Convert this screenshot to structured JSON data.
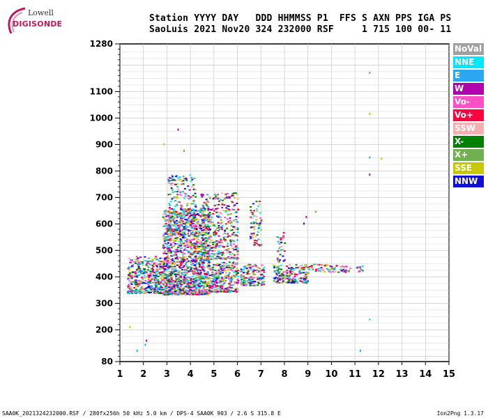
{
  "logo": {
    "line1": "Lowell",
    "line2": "DIGISONDE"
  },
  "header": {
    "line1": "Station YYYY DAY   DDD HHMMSS P1  FFS S AXN PPS IGA PS",
    "line2": "SaoLuis 2021 Nov20 324 232000 RSF     1 715 100 00- 11"
  },
  "footer": {
    "left": "SAA0K_2021324232000.RSF / 280fx256h 50 kHz 5.0 km / DPS-4 SAA0K 903 / 2.6 S 315.8 E",
    "right": "Ion2Png 1.3.17"
  },
  "legend": [
    {
      "label": "NoVal",
      "color": "#a0a0a0"
    },
    {
      "label": "NNE",
      "color": "#00e8ff"
    },
    {
      "label": "E",
      "color": "#2aa7f0"
    },
    {
      "label": "W",
      "color": "#b000b0"
    },
    {
      "label": "Vo-",
      "color": "#ff50c8"
    },
    {
      "label": "Vo+",
      "color": "#ff0040"
    },
    {
      "label": "SSW",
      "color": "#f4b0b0"
    },
    {
      "label": "X-",
      "color": "#008000"
    },
    {
      "label": "X+",
      "color": "#70b050"
    },
    {
      "label": "SSE",
      "color": "#c8c800"
    },
    {
      "label": "NNW",
      "color": "#1010d0"
    }
  ],
  "chart_data": {
    "type": "scatter",
    "title": "",
    "xlabel": "",
    "ylabel": "",
    "xlim": [
      1,
      15
    ],
    "ylim": [
      80,
      1280
    ],
    "x_ticks": [
      1,
      2,
      3,
      4,
      5,
      6,
      7,
      8,
      9,
      10,
      11,
      12,
      13,
      14,
      15
    ],
    "y_ticks": [
      80,
      200,
      300,
      400,
      500,
      600,
      700,
      800,
      900,
      1000,
      1100,
      1280
    ],
    "grid": true,
    "legend_position": "right",
    "clusters": [
      {
        "x": [
          1.3,
          2.8
        ],
        "y": [
          340,
          480
        ],
        "weight": 0.9
      },
      {
        "x": [
          2.8,
          4.8
        ],
        "y": [
          335,
          660
        ],
        "weight": 1.0
      },
      {
        "x": [
          3.0,
          4.2
        ],
        "y": [
          560,
          790
        ],
        "weight": 0.45
      },
      {
        "x": [
          4.8,
          6.0
        ],
        "y": [
          345,
          460
        ],
        "weight": 0.95
      },
      {
        "x": [
          4.4,
          6.0
        ],
        "y": [
          470,
          720
        ],
        "weight": 0.45
      },
      {
        "x": [
          6.1,
          7.1
        ],
        "y": [
          370,
          450
        ],
        "weight": 0.9
      },
      {
        "x": [
          6.5,
          7.0
        ],
        "y": [
          520,
          690
        ],
        "weight": 0.35
      },
      {
        "x": [
          7.5,
          9.0
        ],
        "y": [
          380,
          450
        ],
        "weight": 0.85
      },
      {
        "x": [
          7.6,
          8.0
        ],
        "y": [
          460,
          580
        ],
        "weight": 0.3
      },
      {
        "x": [
          9.0,
          11.3
        ],
        "y": [
          420,
          450
        ],
        "weight": 0.5
      }
    ],
    "isolated_points": [
      {
        "x": 11.6,
        "y": 1175,
        "color": "#ff50c8"
      },
      {
        "x": 11.6,
        "y": 1020,
        "color": "#c8c800"
      },
      {
        "x": 11.6,
        "y": 855,
        "color": "#2aa7f0"
      },
      {
        "x": 11.6,
        "y": 790,
        "color": "#b000b0"
      },
      {
        "x": 12.1,
        "y": 850,
        "color": "#c8c800"
      },
      {
        "x": 11.6,
        "y": 243,
        "color": "#00e8ff"
      },
      {
        "x": 11.2,
        "y": 125,
        "color": "#2aa7f0"
      },
      {
        "x": 2.1,
        "y": 163,
        "color": "#b000b0"
      },
      {
        "x": 2.05,
        "y": 147,
        "color": "#2aa7f0"
      },
      {
        "x": 1.7,
        "y": 125,
        "color": "#2aa7f0"
      },
      {
        "x": 1.4,
        "y": 215,
        "color": "#c8c800"
      },
      {
        "x": 3.45,
        "y": 960,
        "color": "#b000b0"
      },
      {
        "x": 2.85,
        "y": 905,
        "color": "#c8c800"
      },
      {
        "x": 3.7,
        "y": 880,
        "color": "#70b050"
      },
      {
        "x": 9.3,
        "y": 650,
        "color": "#70b050"
      },
      {
        "x": 8.9,
        "y": 630,
        "color": "#b000b0"
      },
      {
        "x": 8.8,
        "y": 605,
        "color": "#1010d0"
      }
    ]
  }
}
